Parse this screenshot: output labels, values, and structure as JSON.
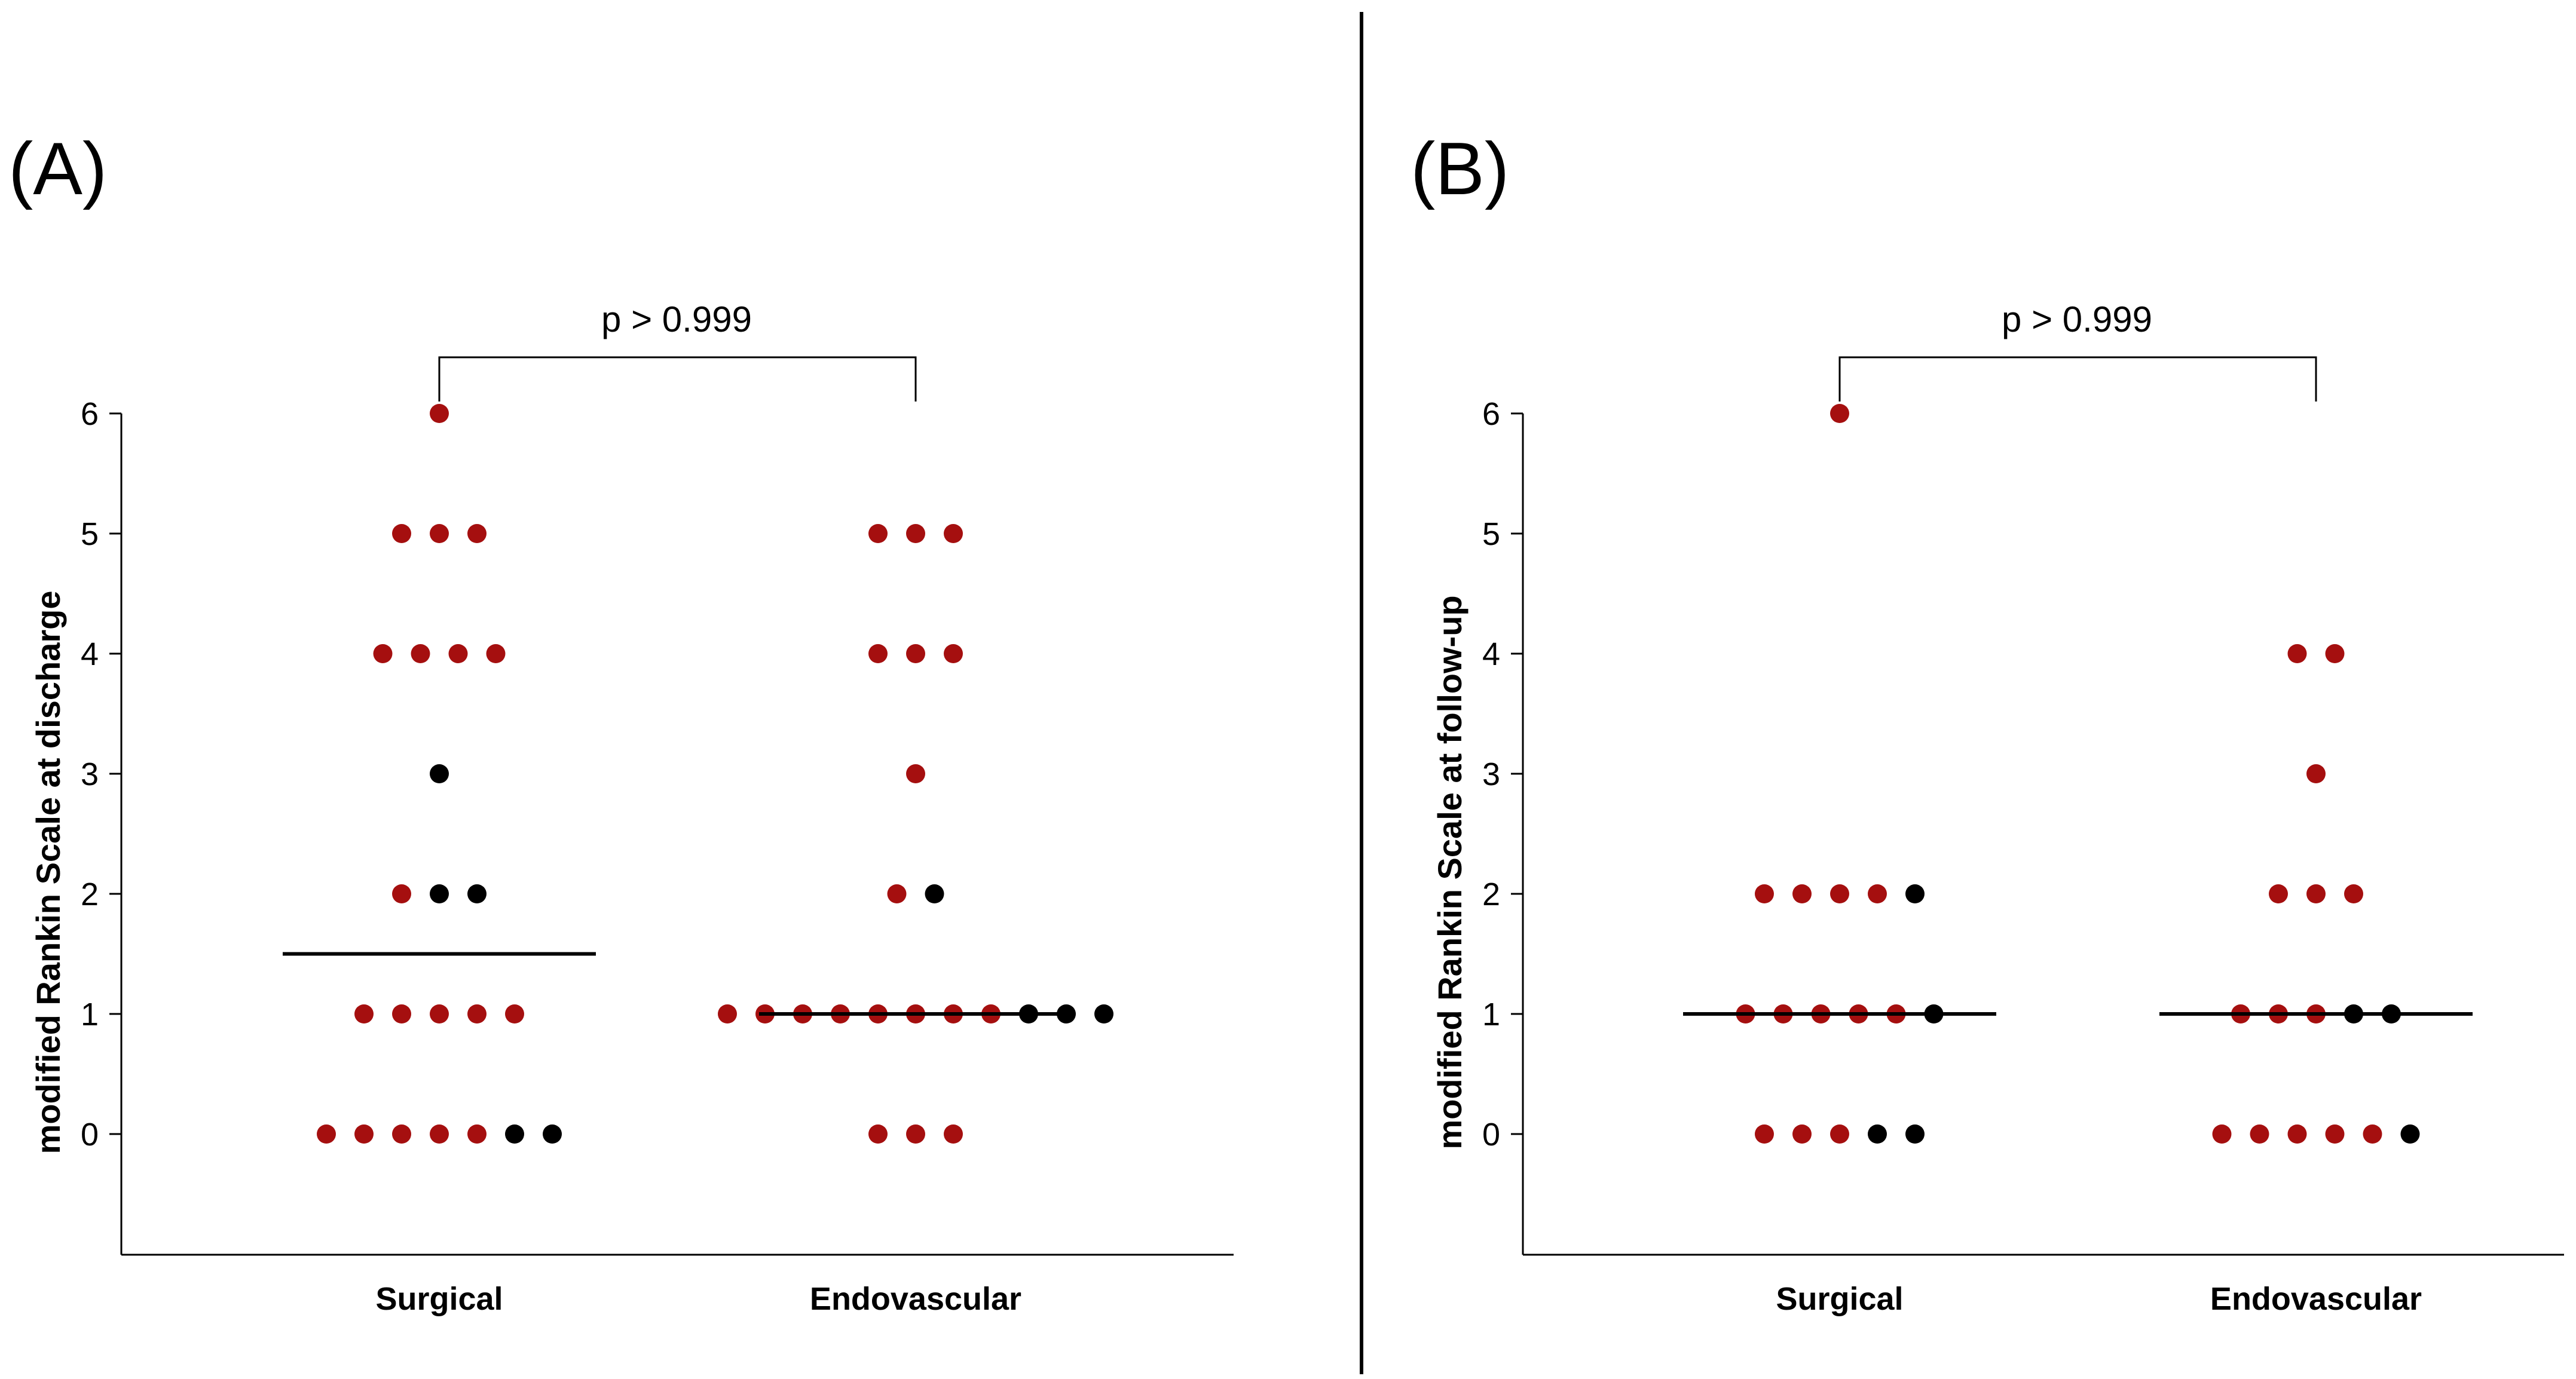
{
  "colors": {
    "sequelae": "#a50f0f",
    "no_sequelae": "#000000",
    "line": "#000000"
  },
  "chart_data": [
    {
      "type": "scatter",
      "panel_label": "(A)",
      "ylabel": "modified Rankin Scale at discharge",
      "ylim": [
        -1,
        6.1
      ],
      "yticks": [
        "0",
        "1",
        "2",
        "3",
        "4",
        "5",
        "6"
      ],
      "categories": [
        "Surgical",
        "Endovascular"
      ],
      "significance": {
        "label": "p > 0.999",
        "between": [
          "Surgical",
          "Endovascular"
        ]
      },
      "groups": [
        {
          "category": "Surgical",
          "median": 1.5,
          "rows": [
            {
              "y": 6,
              "points": [
                "red"
              ]
            },
            {
              "y": 5,
              "points": [
                "red",
                "red",
                "red"
              ]
            },
            {
              "y": 4,
              "points": [
                "red",
                "red",
                "red",
                "red"
              ]
            },
            {
              "y": 3,
              "points": [
                "black"
              ]
            },
            {
              "y": 2,
              "points": [
                "red",
                "black",
                "black"
              ]
            },
            {
              "y": 1,
              "points": [
                "red",
                "red",
                "red",
                "red",
                "red"
              ]
            },
            {
              "y": 0,
              "points": [
                "red",
                "red",
                "red",
                "red",
                "red",
                "black",
                "black"
              ]
            }
          ]
        },
        {
          "category": "Endovascular",
          "median": 1,
          "rows": [
            {
              "y": 5,
              "points": [
                "red",
                "red",
                "red"
              ]
            },
            {
              "y": 4,
              "points": [
                "red",
                "red",
                "red"
              ]
            },
            {
              "y": 3,
              "points": [
                "red"
              ]
            },
            {
              "y": 2,
              "points": [
                "red",
                "black"
              ]
            },
            {
              "y": 1,
              "points": [
                "red",
                "red",
                "red",
                "red",
                "red",
                "red",
                "red",
                "red",
                "black",
                "black",
                "black"
              ]
            },
            {
              "y": 0,
              "points": [
                "red",
                "red",
                "red"
              ]
            }
          ]
        }
      ]
    },
    {
      "type": "scatter",
      "panel_label": "(B)",
      "ylabel": "modified Rankin Scale at follow-up",
      "ylim": [
        -1,
        6.1
      ],
      "yticks": [
        "0",
        "1",
        "2",
        "3",
        "4",
        "5",
        "6"
      ],
      "categories": [
        "Surgical",
        "Endovascular"
      ],
      "significance": {
        "label": "p > 0.999",
        "between": [
          "Surgical",
          "Endovascular"
        ]
      },
      "groups": [
        {
          "category": "Surgical",
          "median": 1,
          "rows": [
            {
              "y": 6,
              "points": [
                "red"
              ]
            },
            {
              "y": 2,
              "points": [
                "red",
                "red",
                "red",
                "red",
                "black"
              ]
            },
            {
              "y": 1,
              "points": [
                "red",
                "red",
                "red",
                "red",
                "red",
                "black"
              ]
            },
            {
              "y": 0,
              "points": [
                "red",
                "red",
                "red",
                "black",
                "black"
              ]
            }
          ]
        },
        {
          "category": "Endovascular",
          "median": 1,
          "rows": [
            {
              "y": 4,
              "points": [
                "red",
                "red"
              ]
            },
            {
              "y": 3,
              "points": [
                "red"
              ]
            },
            {
              "y": 2,
              "points": [
                "red",
                "red",
                "red"
              ]
            },
            {
              "y": 1,
              "points": [
                "red",
                "red",
                "red",
                "black",
                "black"
              ]
            },
            {
              "y": 0,
              "points": [
                "red",
                "red",
                "red",
                "red",
                "red",
                "black"
              ]
            }
          ]
        }
      ]
    }
  ]
}
